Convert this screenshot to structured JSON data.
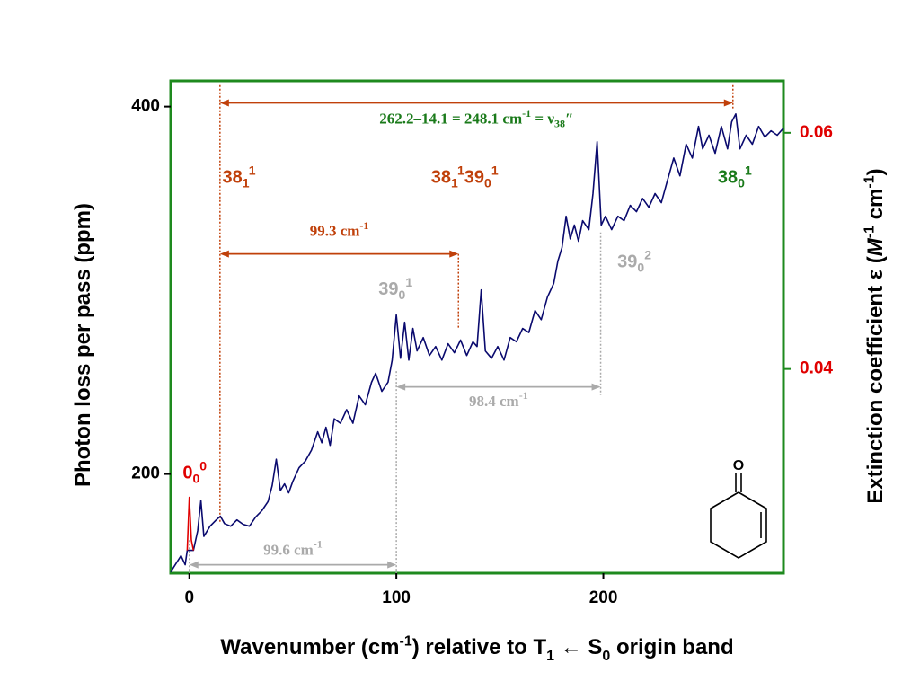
{
  "chart_data": {
    "type": "line",
    "xlim": [
      -9,
      287
    ],
    "xticks": [
      0,
      100,
      200
    ],
    "ylim": [
      146,
      414
    ],
    "yticks": [
      200,
      400
    ],
    "y2lim": [
      0.0227,
      0.0644
    ],
    "y2ticks": [
      0.04,
      0.06
    ],
    "xlabel": [
      {
        "t": "Wavenumber (cm"
      },
      {
        "sup": "-1"
      },
      {
        "t": ") relative to T"
      },
      {
        "sub": "1"
      },
      {
        "t": " ← S"
      },
      {
        "sub": "0"
      },
      {
        "t": " origin band"
      }
    ],
    "ylabel": [
      {
        "t": "Photon loss per pass (ppm)"
      }
    ],
    "y2label": [
      {
        "t": "Extinction coefficient ε ("
      },
      {
        "i": "M"
      },
      {
        "sup": "-1"
      },
      {
        "t": " cm"
      },
      {
        "sup": "-1"
      },
      {
        "t": ")"
      }
    ],
    "frame_color": "#1e8a1e",
    "y2_tick_color": "#e00000",
    "series": [
      {
        "color": "#0a0a6e",
        "x": [
          -9,
          -6,
          -4,
          -2,
          -1,
          2,
          4,
          5.6,
          7,
          10,
          13,
          15,
          17,
          20,
          23,
          26,
          29,
          32,
          35,
          38,
          40,
          42,
          44,
          46,
          48,
          50,
          53,
          56,
          59,
          62,
          64,
          66,
          68,
          70,
          73,
          76,
          79,
          82,
          85,
          88,
          90,
          93,
          96,
          98,
          100,
          102,
          104,
          106,
          108,
          110,
          113,
          116,
          119,
          122,
          125,
          128,
          131,
          134,
          137,
          139,
          141,
          143,
          146,
          149,
          152,
          155,
          158,
          161,
          164,
          167,
          170,
          173,
          176,
          178,
          180,
          182,
          184,
          186,
          188,
          190,
          193,
          195,
          197,
          199,
          201,
          204,
          207,
          210,
          213,
          216,
          219,
          222,
          225,
          228,
          231,
          234,
          237,
          240,
          243,
          246,
          248,
          251,
          254,
          257,
          260,
          262,
          264,
          266,
          269,
          272,
          275,
          278,
          281,
          284,
          287
        ],
        "values": [
          146.7,
          152,
          155.5,
          150.6,
          158.4,
          158.4,
          169,
          185.5,
          166,
          171.6,
          175,
          177,
          173,
          171.6,
          175,
          172.6,
          171.6,
          176.5,
          180,
          185,
          193.6,
          208,
          191,
          194.6,
          189.7,
          196,
          203.4,
          207,
          213,
          223,
          217,
          225.4,
          215.6,
          230,
          227.6,
          235,
          227.6,
          242.5,
          237.7,
          249.9,
          254.8,
          245,
          250,
          262,
          286.6,
          263,
          282.6,
          262,
          279.2,
          267,
          274.3,
          264.5,
          269.4,
          262,
          270.9,
          266,
          272.9,
          264.5,
          272,
          269.4,
          300.2,
          267,
          263,
          269.4,
          262,
          274.3,
          272,
          279.2,
          277,
          289,
          284,
          296.3,
          303.7,
          315.9,
          323.2,
          340.3,
          328,
          335.5,
          326.7,
          337.9,
          333,
          352.6,
          380.9,
          335.5,
          340.3,
          333,
          340.3,
          337.9,
          346.2,
          342.8,
          350,
          345.2,
          352.6,
          347.7,
          360,
          372,
          362.3,
          379.5,
          372,
          389.2,
          377,
          384.4,
          374.6,
          389.2,
          377,
          391.7,
          396,
          377,
          384.4,
          379.5,
          389.2,
          383.4,
          386.8,
          384.4,
          388.3
        ]
      },
      {
        "color": "#e00000",
        "x": [
          -1,
          0,
          1,
          2
        ],
        "values": [
          158.4,
          187.3,
          164,
          158.4
        ]
      }
    ],
    "guides": [
      {
        "x": 14.8,
        "y": [
          411.7,
          173
        ],
        "color": "#c0400a"
      },
      {
        "x": 130,
        "y": [
          319.8,
          279
        ],
        "color": "#c0400a"
      },
      {
        "x": 262.6,
        "y": [
          411.7,
          399
        ],
        "color": "#c0400a"
      },
      {
        "x": 100,
        "y": [
          256,
          146
        ],
        "color": "#aaaaaa"
      },
      {
        "x": 198.7,
        "y": [
          331.5,
          243
        ],
        "color": "#aaaaaa"
      },
      {
        "x": 0,
        "y": [
          164,
          146
        ],
        "color": "#aaaaaa"
      }
    ],
    "arrows": [
      {
        "x": [
          14.8,
          262.6
        ],
        "y": 402,
        "color": "#c0400a",
        "label_color": "#1a7a1a",
        "label_y": 392.7,
        "label": [
          {
            "t": "262.2–14.1 = 248.1 cm"
          },
          {
            "sup": "-1"
          },
          {
            "t": " = ν"
          },
          {
            "sub": "38"
          },
          {
            "t": "″"
          }
        ]
      },
      {
        "x": [
          14.8,
          130
        ],
        "y": 319.8,
        "color": "#c0400a",
        "label_color": "#c0400a",
        "label_y": 331.5,
        "label": [
          {
            "t": "99.3 cm"
          },
          {
            "sup": "-1"
          }
        ]
      },
      {
        "x": [
          100,
          198.7
        ],
        "y": 247.4,
        "color": "#aaaaaa",
        "label_color": "#aaaaaa",
        "label_y": 239,
        "label": [
          {
            "t": "98.4 cm"
          },
          {
            "sup": "-1"
          }
        ]
      },
      {
        "x": [
          0,
          100
        ],
        "y": 150.6,
        "color": "#aaaaaa",
        "label_color": "#aaaaaa",
        "label_y": 158,
        "label": [
          {
            "t": "99.6 cm"
          },
          {
            "sup": "-1"
          }
        ]
      }
    ],
    "peak_labels": [
      {
        "x": 2.6,
        "y": 200,
        "color": "#e00000",
        "label": [
          {
            "t": "0"
          },
          {
            "sub": "0"
          },
          {
            "sup": "0"
          }
        ]
      },
      {
        "x": 24,
        "y": 361,
        "color": "#c0400a",
        "label": [
          {
            "t": "38"
          },
          {
            "sub": "1"
          },
          {
            "sup": "1"
          }
        ]
      },
      {
        "x": 133,
        "y": 361,
        "color": "#c0400a",
        "label": [
          {
            "t": "38"
          },
          {
            "sub": "1"
          },
          {
            "sup": "1"
          },
          {
            "t": "39"
          },
          {
            "sub": "0"
          },
          {
            "sup": "1"
          }
        ]
      },
      {
        "x": 99.6,
        "y": 300,
        "color": "#aaaaaa",
        "label": [
          {
            "t": "39"
          },
          {
            "sub": "0"
          },
          {
            "sup": "1"
          }
        ]
      },
      {
        "x": 215,
        "y": 315,
        "color": "#aaaaaa",
        "label": [
          {
            "t": "39"
          },
          {
            "sub": "0"
          },
          {
            "sup": "2"
          }
        ]
      },
      {
        "x": 263.5,
        "y": 361,
        "color": "#1a7a1a",
        "label": [
          {
            "t": "38"
          },
          {
            "sub": "0"
          },
          {
            "sup": "1"
          }
        ]
      }
    ],
    "molecule": {
      "atom": "O"
    }
  }
}
